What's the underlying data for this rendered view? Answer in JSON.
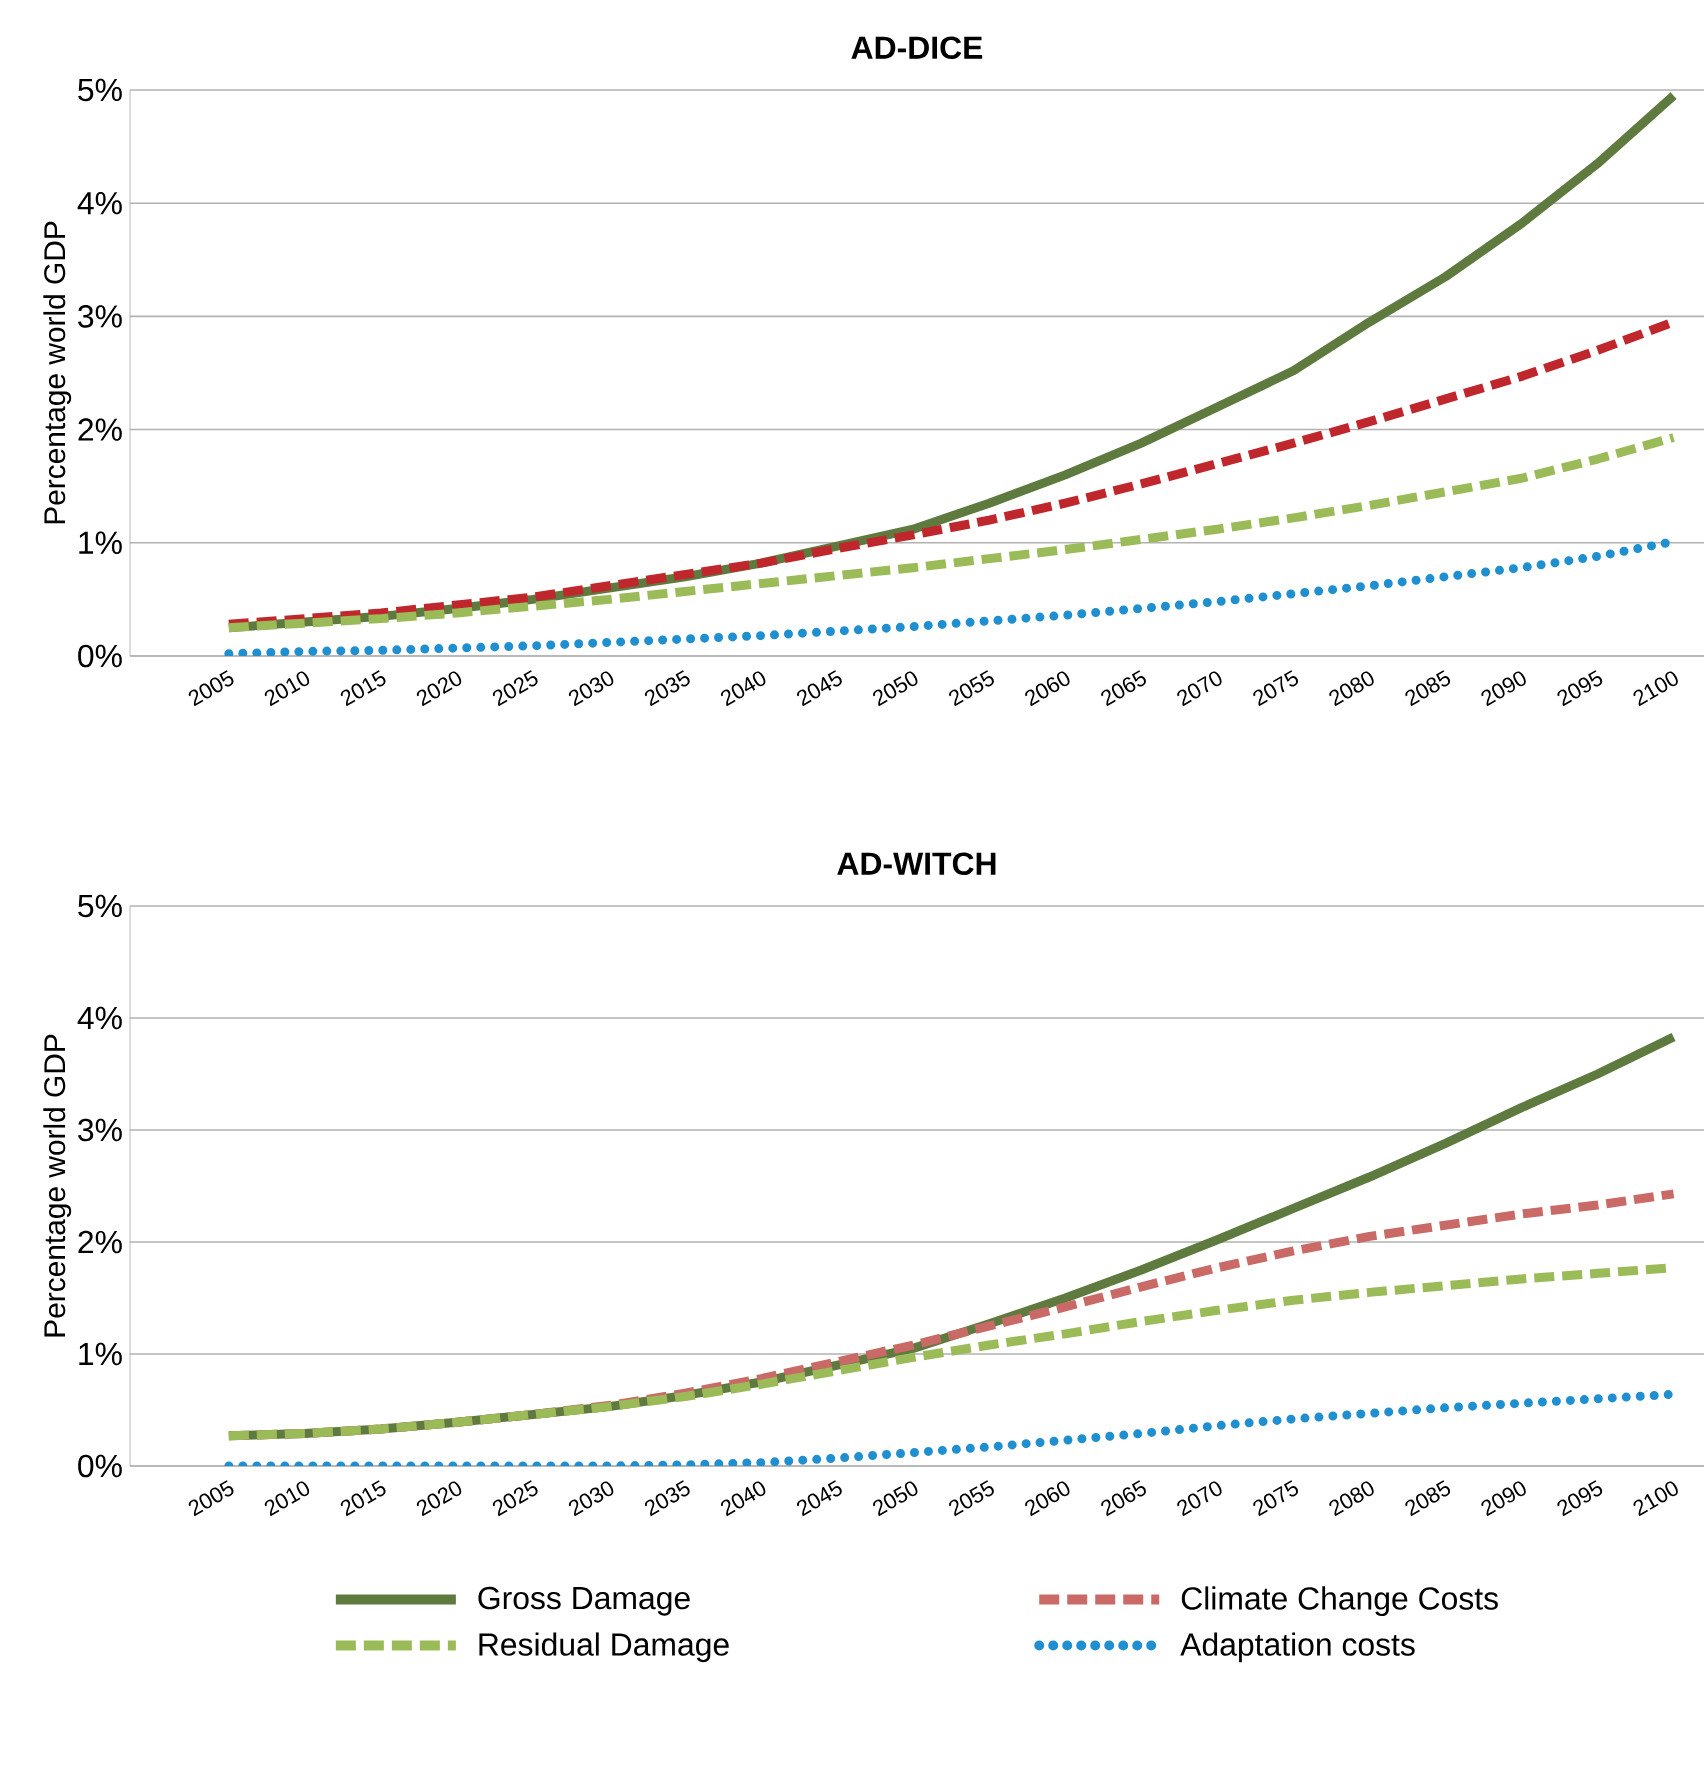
{
  "chart_data": [
    {
      "type": "line",
      "title": "AD-DICE",
      "ylabel": "Percentage world GDP",
      "categories": [
        "2005",
        "2010",
        "2015",
        "2020",
        "2025",
        "2030",
        "2035",
        "2040",
        "2045",
        "2050",
        "2055",
        "2060",
        "2065",
        "2070",
        "2075",
        "2080",
        "2085",
        "2090",
        "2095",
        "2100"
      ],
      "ylim": [
        0,
        5
      ],
      "yticks": [
        {
          "value": 0,
          "label": "0%"
        },
        {
          "value": 1,
          "label": "1%"
        },
        {
          "value": 2,
          "label": "2%"
        },
        {
          "value": 3,
          "label": "3%"
        },
        {
          "value": 4,
          "label": "4%"
        },
        {
          "value": 5,
          "label": "5%"
        }
      ],
      "grid": "y",
      "legend": false,
      "marker": "none",
      "series": [
        {
          "color": "#5e7a3f",
          "line_style": "solid",
          "values": [
            0.25,
            0.3,
            0.35,
            0.42,
            0.5,
            0.6,
            0.7,
            0.82,
            0.97,
            1.12,
            1.35,
            1.6,
            1.88,
            2.2,
            2.52,
            2.95,
            3.35,
            3.82,
            4.35,
            4.95
          ]
        },
        {
          "color": "#c0272d",
          "line_style": "dashed",
          "values": [
            0.28,
            0.33,
            0.38,
            0.45,
            0.52,
            0.62,
            0.72,
            0.82,
            0.95,
            1.07,
            1.2,
            1.35,
            1.52,
            1.7,
            1.88,
            2.07,
            2.27,
            2.47,
            2.7,
            2.95
          ]
        },
        {
          "color": "#9bbb59",
          "line_style": "dashed",
          "values": [
            0.25,
            0.29,
            0.33,
            0.38,
            0.44,
            0.5,
            0.57,
            0.64,
            0.71,
            0.78,
            0.86,
            0.94,
            1.03,
            1.12,
            1.22,
            1.33,
            1.45,
            1.57,
            1.74,
            1.93
          ]
        },
        {
          "color": "#1f8fd0",
          "line_style": "dotted",
          "values": [
            0.02,
            0.04,
            0.05,
            0.07,
            0.09,
            0.12,
            0.15,
            0.18,
            0.22,
            0.26,
            0.31,
            0.36,
            0.42,
            0.48,
            0.55,
            0.62,
            0.7,
            0.78,
            0.88,
            1.01
          ]
        }
      ]
    },
    {
      "type": "line",
      "title": "AD-WITCH",
      "ylabel": "Percentage world GDP",
      "categories": [
        "2005",
        "2010",
        "2015",
        "2020",
        "2025",
        "2030",
        "2035",
        "2040",
        "2045",
        "2050",
        "2055",
        "2060",
        "2065",
        "2070",
        "2075",
        "2080",
        "2085",
        "2090",
        "2095",
        "2100"
      ],
      "ylim": [
        0,
        5
      ],
      "yticks": [
        {
          "value": 0,
          "label": "0%"
        },
        {
          "value": 1,
          "label": "1%"
        },
        {
          "value": 2,
          "label": "2%"
        },
        {
          "value": 3,
          "label": "3%"
        },
        {
          "value": 4,
          "label": "4%"
        },
        {
          "value": 5,
          "label": "5%"
        }
      ],
      "grid": "y",
      "legend": "bottom",
      "marker": "none",
      "series": [
        {
          "name": "Gross Damage",
          "color": "#5e7a3f",
          "line_style": "solid",
          "values": [
            0.27,
            0.29,
            0.33,
            0.39,
            0.46,
            0.53,
            0.63,
            0.75,
            0.9,
            1.05,
            1.27,
            1.5,
            1.75,
            2.02,
            2.3,
            2.58,
            2.88,
            3.2,
            3.5,
            3.83
          ]
        },
        {
          "name": "Climate Change Costs",
          "color": "#c96a66",
          "line_style": "dashed",
          "values": [
            0.27,
            0.29,
            0.33,
            0.39,
            0.46,
            0.54,
            0.65,
            0.78,
            0.93,
            1.08,
            1.25,
            1.42,
            1.6,
            1.77,
            1.92,
            2.05,
            2.15,
            2.25,
            2.33,
            2.43
          ]
        },
        {
          "name": "Residual Damage",
          "color": "#9bbb59",
          "line_style": "dashed",
          "values": [
            0.27,
            0.29,
            0.33,
            0.39,
            0.46,
            0.53,
            0.62,
            0.73,
            0.85,
            0.97,
            1.08,
            1.18,
            1.29,
            1.39,
            1.48,
            1.55,
            1.61,
            1.67,
            1.72,
            1.77
          ]
        },
        {
          "name": "Adaptation costs",
          "color": "#1f8fd0",
          "line_style": "dotted",
          "values": [
            0,
            0,
            0,
            0,
            0,
            0,
            0.01,
            0.03,
            0.07,
            0.12,
            0.17,
            0.23,
            0.29,
            0.36,
            0.42,
            0.47,
            0.52,
            0.56,
            0.6,
            0.64
          ]
        }
      ]
    }
  ]
}
